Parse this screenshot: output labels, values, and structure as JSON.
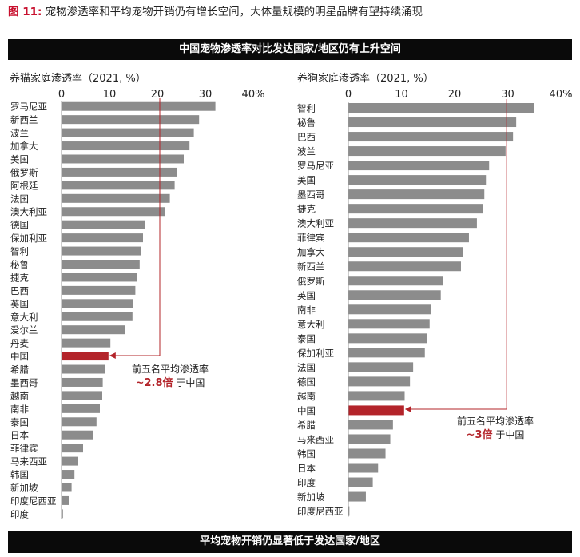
{
  "figure": {
    "label": "图 11:",
    "text": "宠物渗透率和平均宠物开销仍有增长空间，大体量规模的明星品牌有望持续涌现"
  },
  "banner_top": "中国宠物渗透率对比发达国家/地区仍有上升空间",
  "banner_bottom": "平均宠物开销仍显著低于发达国家/地区",
  "colors": {
    "bar": "#8c8c8c",
    "highlight": "#b3242a",
    "annotation": "#b3242a",
    "band": "#0a0a0a"
  },
  "chart_data": [
    {
      "type": "bar",
      "orientation": "horizontal",
      "title": "养猫家庭渗透率（2021, %）",
      "xlim": [
        0,
        40
      ],
      "ticks": [
        "0",
        "10",
        "20",
        "30",
        "40%"
      ],
      "tick_values": [
        0,
        10,
        20,
        30,
        40
      ],
      "highlight": "中国",
      "categories": [
        "罗马尼亚",
        "新西兰",
        "波兰",
        "加拿大",
        "美国",
        "俄罗斯",
        "阿根廷",
        "法国",
        "澳大利亚",
        "德国",
        "保加利亚",
        "智利",
        "秘鲁",
        "捷克",
        "巴西",
        "英国",
        "意大利",
        "爱尔兰",
        "丹麦",
        "中国",
        "希腊",
        "墨西哥",
        "越南",
        "南非",
        "泰国",
        "日本",
        "菲律宾",
        "马来西亚",
        "韩国",
        "新加坡",
        "印度尼西亚",
        "印度"
      ],
      "values": [
        32.1,
        28.7,
        27.6,
        26.7,
        25.5,
        24.0,
        23.6,
        22.6,
        21.5,
        17.4,
        17.0,
        16.6,
        16.3,
        15.7,
        15.4,
        15.0,
        14.8,
        13.2,
        10.2,
        9.8,
        9.0,
        8.6,
        8.5,
        8.0,
        7.3,
        6.6,
        4.5,
        3.5,
        2.7,
        2.1,
        1.5,
        0.3
      ],
      "reference_line": 20.5,
      "annotation": {
        "line1": "前五名平均渗透率",
        "value": "~2.8倍",
        "suffix": "于中国"
      }
    },
    {
      "type": "bar",
      "orientation": "horizontal",
      "title": "养狗家庭渗透率（2021, %）",
      "xlim": [
        0,
        40
      ],
      "ticks": [
        "0",
        "10",
        "20",
        "30",
        "40%"
      ],
      "tick_values": [
        0,
        10,
        20,
        30,
        40
      ],
      "highlight": "中国",
      "categories": [
        "智利",
        "秘鲁",
        "巴西",
        "波兰",
        "罗马尼亚",
        "美国",
        "墨西哥",
        "捷克",
        "澳大利亚",
        "菲律宾",
        "加拿大",
        "新西兰",
        "俄罗斯",
        "英国",
        "南非",
        "意大利",
        "泰国",
        "保加利亚",
        "法国",
        "德国",
        "越南",
        "中国",
        "希腊",
        "马来西亚",
        "韩国",
        "日本",
        "印度",
        "新加坡",
        "印度尼西亚"
      ],
      "values": [
        35.0,
        31.6,
        31.0,
        29.6,
        26.5,
        25.9,
        25.6,
        25.3,
        24.2,
        22.7,
        21.6,
        21.2,
        17.8,
        17.4,
        15.6,
        15.3,
        14.8,
        14.4,
        12.2,
        11.6,
        10.6,
        10.5,
        8.4,
        7.9,
        7.0,
        5.6,
        4.6,
        3.3,
        0.2
      ],
      "reference_line": 29.8,
      "annotation": {
        "line1": "前五名平均渗透率",
        "value": "~3倍",
        "suffix": "于中国"
      }
    }
  ]
}
